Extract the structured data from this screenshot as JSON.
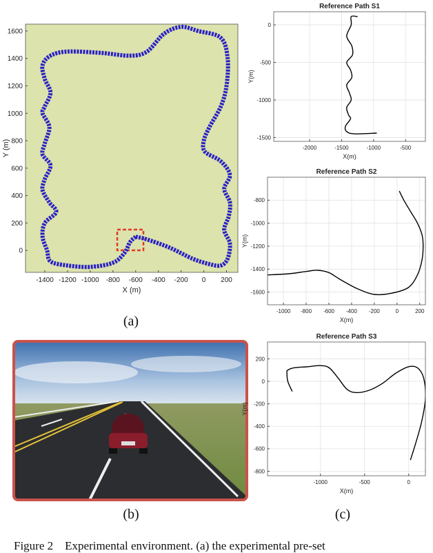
{
  "chart_data": [
    {
      "type": "line",
      "xlabel": "X (m)",
      "ylabel": "Y (m)",
      "color": "#2b22c4",
      "grid": false,
      "xlim": [
        -1570,
        300
      ],
      "xticks": [
        -1400,
        -1200,
        -1000,
        -800,
        -600,
        -400,
        -200,
        0,
        200
      ],
      "ylim": [
        -160,
        1650
      ],
      "yticks": [
        0,
        200,
        400,
        600,
        800,
        1000,
        1200,
        1400,
        1600
      ],
      "x": [
        -600,
        -500,
        -300,
        -100,
        50,
        150,
        210,
        230,
        180,
        220,
        230,
        180,
        230,
        150,
        10,
        0,
        50,
        150,
        200,
        210,
        150,
        -50,
        -200,
        -350,
        -500,
        -650,
        -900,
        -1200,
        -1350,
        -1420,
        -1400,
        -1350,
        -1400,
        -1420,
        -1360,
        -1400,
        -1420,
        -1350,
        -1400,
        -1420,
        -1360,
        -1300,
        -1400,
        -1420,
        -1380,
        -1350,
        -1200,
        -1000,
        -800,
        -700,
        -650,
        -600
      ],
      "values": [
        100,
        80,
        20,
        -60,
        -100,
        -110,
        -60,
        50,
        150,
        250,
        350,
        450,
        550,
        650,
        720,
        800,
        900,
        1050,
        1200,
        1400,
        1550,
        1600,
        1630,
        1580,
        1450,
        1420,
        1440,
        1450,
        1420,
        1350,
        1250,
        1150,
        1050,
        1000,
        900,
        780,
        700,
        620,
        520,
        440,
        350,
        280,
        200,
        100,
        0,
        -80,
        -110,
        -120,
        -90,
        -20,
        60,
        100
      ]
    },
    {
      "type": "line",
      "title": "Reference Path S1",
      "xlabel": "X(m)",
      "ylabel": "Y(m)",
      "color": "#000000",
      "grid": true,
      "xlim": [
        -2560,
        -190
      ],
      "xticks": [
        -2000,
        -1500,
        -1000,
        -500
      ],
      "ylim": [
        -1550,
        175
      ],
      "yticks": [
        0,
        -500,
        -1000,
        -1500
      ],
      "x": [
        -1250,
        -1350,
        -1350,
        -1420,
        -1340,
        -1330,
        -1420,
        -1360,
        -1340,
        -1420,
        -1380,
        -1350,
        -1420,
        -1390,
        -1360,
        -1440,
        -1420,
        -1300,
        -950
      ],
      "values": [
        110,
        110,
        0,
        -150,
        -280,
        -400,
        -500,
        -600,
        -700,
        -800,
        -900,
        -1000,
        -1100,
        -1200,
        -1250,
        -1350,
        -1420,
        -1450,
        -1440
      ]
    },
    {
      "type": "line",
      "title": "Reference Path S2",
      "xlabel": "X(m)",
      "ylabel": "Y(m)",
      "color": "#000000",
      "grid": true,
      "xlim": [
        -1140,
        250
      ],
      "xticks": [
        -1000,
        -800,
        -600,
        -400,
        -200,
        0,
        200
      ],
      "ylim": [
        -1710,
        -600
      ],
      "yticks": [
        -800,
        -1000,
        -1200,
        -1400,
        -1600
      ],
      "x": [
        20,
        60,
        120,
        180,
        220,
        230,
        220,
        180,
        100,
        -50,
        -200,
        -350,
        -500,
        -600,
        -700,
        -800,
        -950,
        -1140
      ],
      "values": [
        -720,
        -800,
        -900,
        -1000,
        -1100,
        -1200,
        -1320,
        -1450,
        -1560,
        -1610,
        -1620,
        -1570,
        -1490,
        -1430,
        -1410,
        -1420,
        -1440,
        -1450
      ]
    },
    {
      "type": "line",
      "title": "Reference Path S3",
      "xlabel": "X(m)",
      "ylabel": "Y(m)",
      "color": "#000000",
      "grid": true,
      "xlim": [
        -1600,
        190
      ],
      "xticks": [
        -1000,
        -500,
        0
      ],
      "ylim": [
        -840,
        350
      ],
      "yticks": [
        200,
        0,
        -200,
        -400,
        -600,
        -800
      ],
      "x": [
        -1320,
        -1370,
        -1380,
        -1370,
        -1300,
        -1150,
        -1000,
        -900,
        -800,
        -700,
        -600,
        -450,
        -300,
        -150,
        0,
        100,
        170,
        190,
        150,
        80,
        20
      ],
      "values": [
        -90,
        0,
        80,
        100,
        120,
        130,
        140,
        120,
        30,
        -70,
        -100,
        -80,
        -20,
        70,
        130,
        120,
        30,
        -150,
        -350,
        -550,
        -700
      ]
    }
  ],
  "panel_labels": [
    "(a)",
    "(b)",
    "(c)"
  ],
  "caption": "Figure 2    Experimental environment. (a) the experimental pre-set"
}
